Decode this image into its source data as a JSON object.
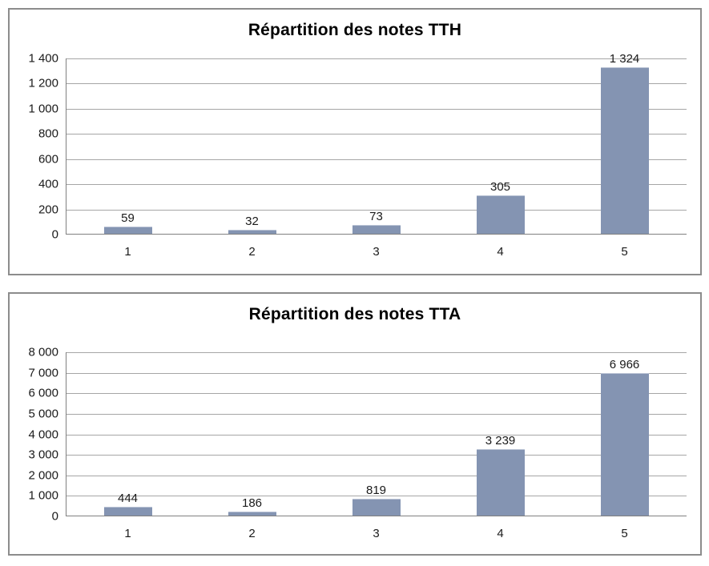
{
  "style": {
    "bar_color": "#8494B2",
    "gridline_color": "#A6A6A6",
    "axis_color": "#808080",
    "box_border_color": "#8C8C8C",
    "text_color": "#1A1A1A",
    "title_color": "#000000",
    "background": "#FFFFFF"
  },
  "chart_data": [
    {
      "type": "bar",
      "title": "Répartition des notes TTH",
      "categories": [
        "1",
        "2",
        "3",
        "4",
        "5"
      ],
      "values": [
        59,
        32,
        73,
        305,
        1324
      ],
      "value_labels": [
        "59",
        "32",
        "73",
        "305",
        "1 324"
      ],
      "ylim": [
        0,
        1400
      ],
      "ystep": 200,
      "ytick_labels": [
        "0",
        "200",
        "400",
        "600",
        "800",
        "1 000",
        "1 200",
        "1 400"
      ],
      "xlabel": "",
      "ylabel": "",
      "grid": "horizontal",
      "legend": "none",
      "bar_color": "#8494B2"
    },
    {
      "type": "bar",
      "title": "Répartition des notes TTA",
      "categories": [
        "1",
        "2",
        "3",
        "4",
        "5"
      ],
      "values": [
        444,
        186,
        819,
        3239,
        6966
      ],
      "value_labels": [
        "444",
        "186",
        "819",
        "3 239",
        "6 966"
      ],
      "ylim": [
        0,
        8000
      ],
      "ystep": 1000,
      "ytick_labels": [
        "0",
        "1 000",
        "2 000",
        "3 000",
        "4 000",
        "5 000",
        "6 000",
        "7 000",
        "8 000"
      ],
      "xlabel": "",
      "ylabel": "",
      "grid": "horizontal",
      "legend": "none",
      "bar_color": "#8494B2"
    }
  ]
}
